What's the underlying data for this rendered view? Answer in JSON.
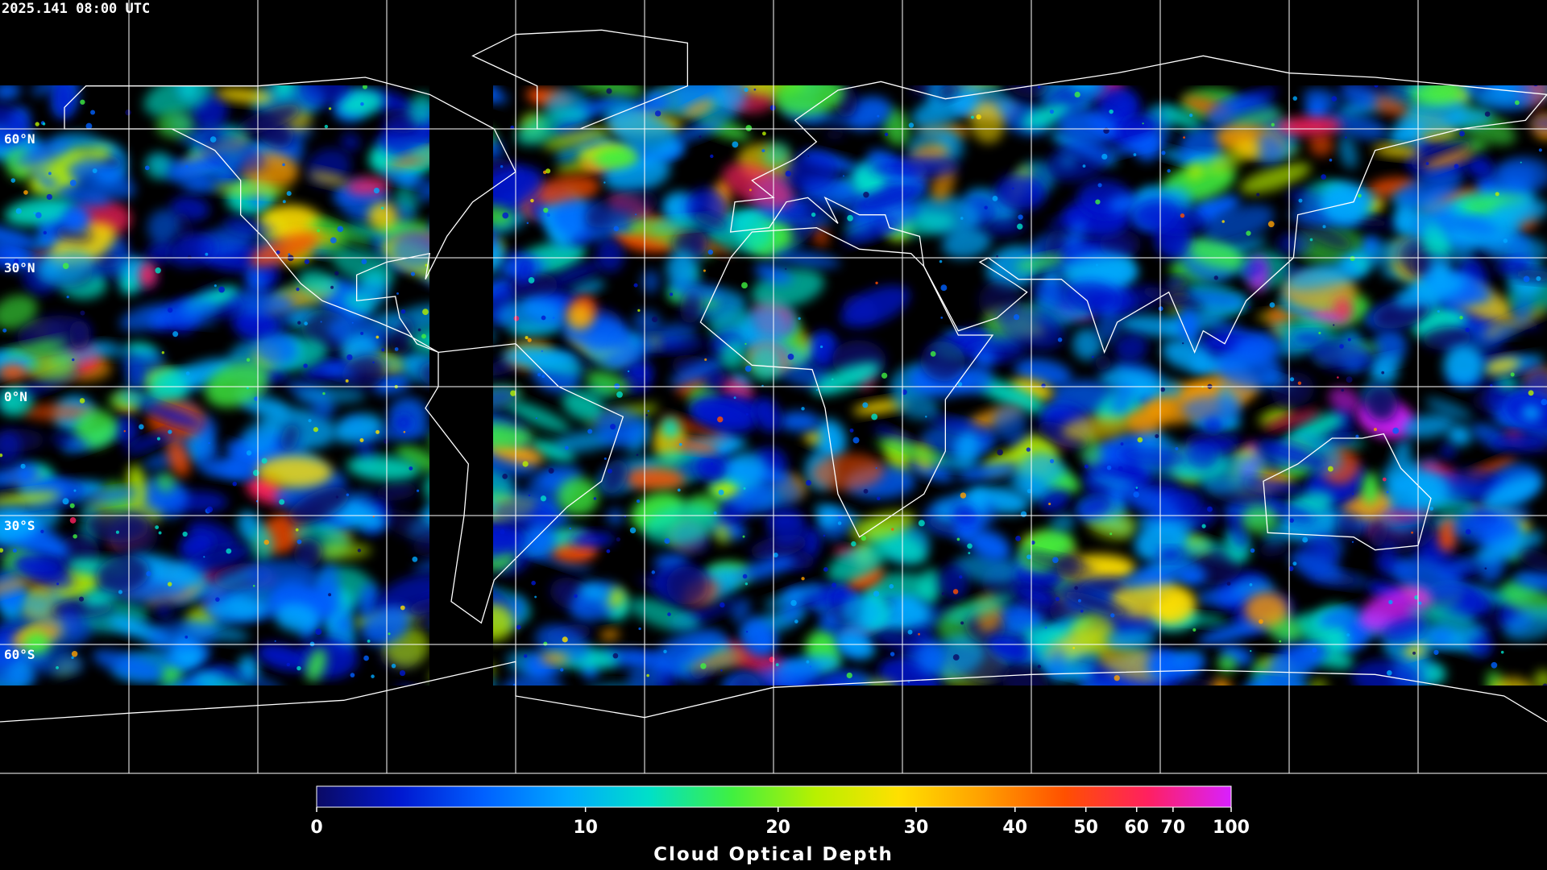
{
  "timestamp": "2025.141 08:00 UTC",
  "map": {
    "lonlim": [
      -180,
      180
    ],
    "latlim": [
      -90,
      90
    ],
    "lon_grid": [
      -150,
      -120,
      -90,
      -60,
      -30,
      0,
      30,
      60,
      90,
      120,
      150
    ],
    "lat_grid": [
      {
        "value": 60,
        "label": "60°N"
      },
      {
        "value": 30,
        "label": "30°N"
      },
      {
        "value": 0,
        "label": "0°N"
      },
      {
        "value": -30,
        "label": "30°S"
      },
      {
        "value": -60,
        "label": "60°S"
      }
    ],
    "grid_color": "#ffffff"
  },
  "colorbar": {
    "title": "Cloud Optical Depth",
    "clim": [
      0,
      100
    ],
    "ticks": [
      0,
      10,
      20,
      30,
      40,
      50,
      60,
      70,
      100
    ],
    "colormap": [
      "#0a0a64",
      "#0018d0",
      "#0060ff",
      "#00a8ff",
      "#00e0c8",
      "#40f040",
      "#b8f000",
      "#ffe000",
      "#ffa000",
      "#ff5000",
      "#ff2060",
      "#d820ff"
    ]
  }
}
